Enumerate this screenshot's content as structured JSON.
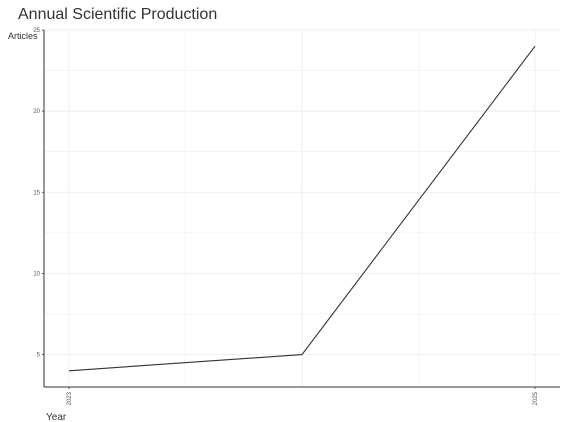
{
  "chart_data": {
    "type": "line",
    "title": "Annual Scientific Production",
    "xlabel": "Year",
    "ylabel": "Articles",
    "x": [
      2023,
      2024,
      2025
    ],
    "y": [
      4,
      5,
      24
    ],
    "x_ticks": [
      "2023",
      "2025"
    ],
    "y_ticks": [
      5,
      10,
      15,
      20,
      25
    ],
    "xlim": [
      2023,
      2025
    ],
    "ylim": [
      3,
      25
    ],
    "grid": true,
    "line_color": "#333333",
    "grid_color": "#eeeeee",
    "axis_color": "#333333"
  }
}
